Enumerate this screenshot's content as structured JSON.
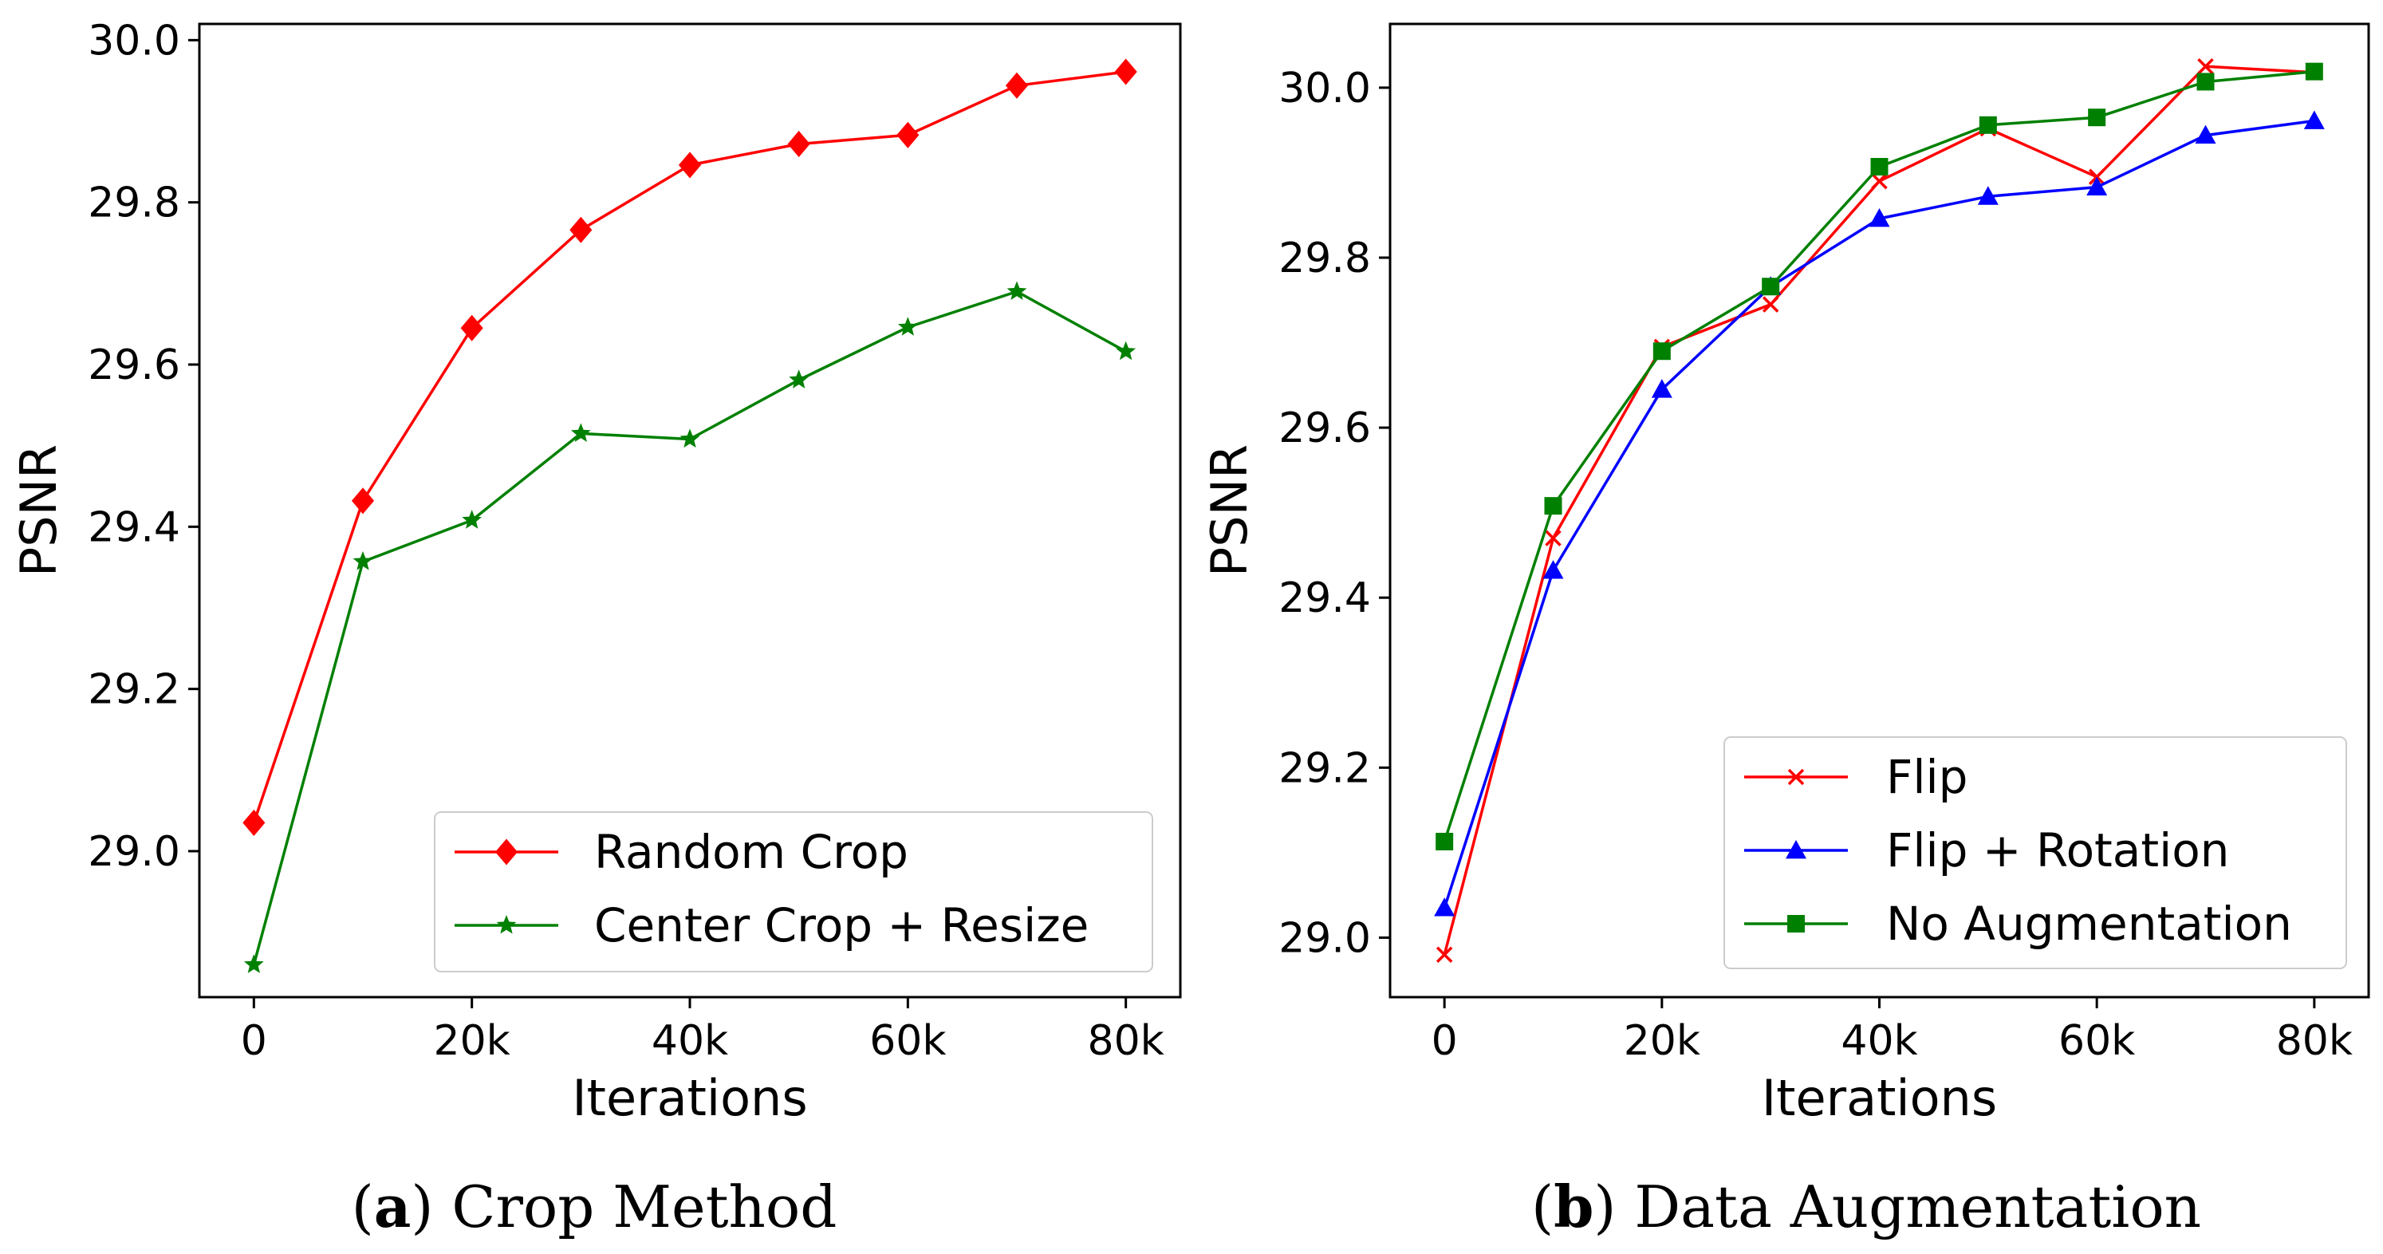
{
  "chart_data": [
    {
      "type": "line",
      "caption_letter": "a",
      "caption_text": "Crop Method",
      "xlabel": "Iterations",
      "ylabel": "PSNR",
      "xlim": [
        -5000,
        85000
      ],
      "ylim": [
        28.82,
        30.02
      ],
      "xticks": [
        0,
        20000,
        40000,
        60000,
        80000
      ],
      "xtick_labels": [
        "0",
        "20k",
        "40k",
        "60k",
        "80k"
      ],
      "yticks": [
        29.0,
        29.2,
        29.4,
        29.6,
        29.8,
        30.0
      ],
      "ytick_labels": [
        "29.0",
        "29.2",
        "29.4",
        "29.6",
        "29.8",
        "30.0"
      ],
      "legend_position": "lower-right",
      "x": [
        0,
        10000,
        20000,
        30000,
        40000,
        50000,
        60000,
        70000,
        80000
      ],
      "series": [
        {
          "name": "Random Crop",
          "color": "#ff0000",
          "marker": "diamond",
          "values": [
            29.035,
            29.432,
            29.645,
            29.766,
            29.846,
            29.872,
            29.883,
            29.944,
            29.961
          ]
        },
        {
          "name": "Center Crop + Resize",
          "color": "#008000",
          "marker": "star",
          "values": [
            28.86,
            29.357,
            29.408,
            29.515,
            29.508,
            29.581,
            29.646,
            29.69,
            29.616
          ]
        }
      ]
    },
    {
      "type": "line",
      "caption_letter": "b",
      "caption_text": "Data Augmentation",
      "xlabel": "Iterations",
      "ylabel": "PSNR",
      "xlim": [
        -5000,
        85000
      ],
      "ylim": [
        28.93,
        30.075
      ],
      "xticks": [
        0,
        20000,
        40000,
        60000,
        80000
      ],
      "xtick_labels": [
        "0",
        "20k",
        "40k",
        "60k",
        "80k"
      ],
      "yticks": [
        29.0,
        29.2,
        29.4,
        29.6,
        29.8,
        30.0
      ],
      "ytick_labels": [
        "29.0",
        "29.2",
        "29.4",
        "29.6",
        "29.8",
        "30.0"
      ],
      "legend_position": "lower-right",
      "x": [
        0,
        10000,
        20000,
        30000,
        40000,
        50000,
        60000,
        70000,
        80000
      ],
      "series": [
        {
          "name": "Flip",
          "color": "#ff0000",
          "marker": "x",
          "values": [
            28.98,
            29.47,
            29.695,
            29.745,
            29.89,
            29.952,
            29.895,
            30.025,
            30.018
          ]
        },
        {
          "name": "Flip + Rotation",
          "color": "#0000ff",
          "marker": "triangle",
          "values": [
            29.035,
            29.432,
            29.645,
            29.766,
            29.846,
            29.872,
            29.883,
            29.944,
            29.961
          ]
        },
        {
          "name": "No Augmentation",
          "color": "#008000",
          "marker": "square",
          "values": [
            29.113,
            29.508,
            29.69,
            29.766,
            29.907,
            29.956,
            29.965,
            30.007,
            30.019
          ]
        }
      ]
    }
  ]
}
